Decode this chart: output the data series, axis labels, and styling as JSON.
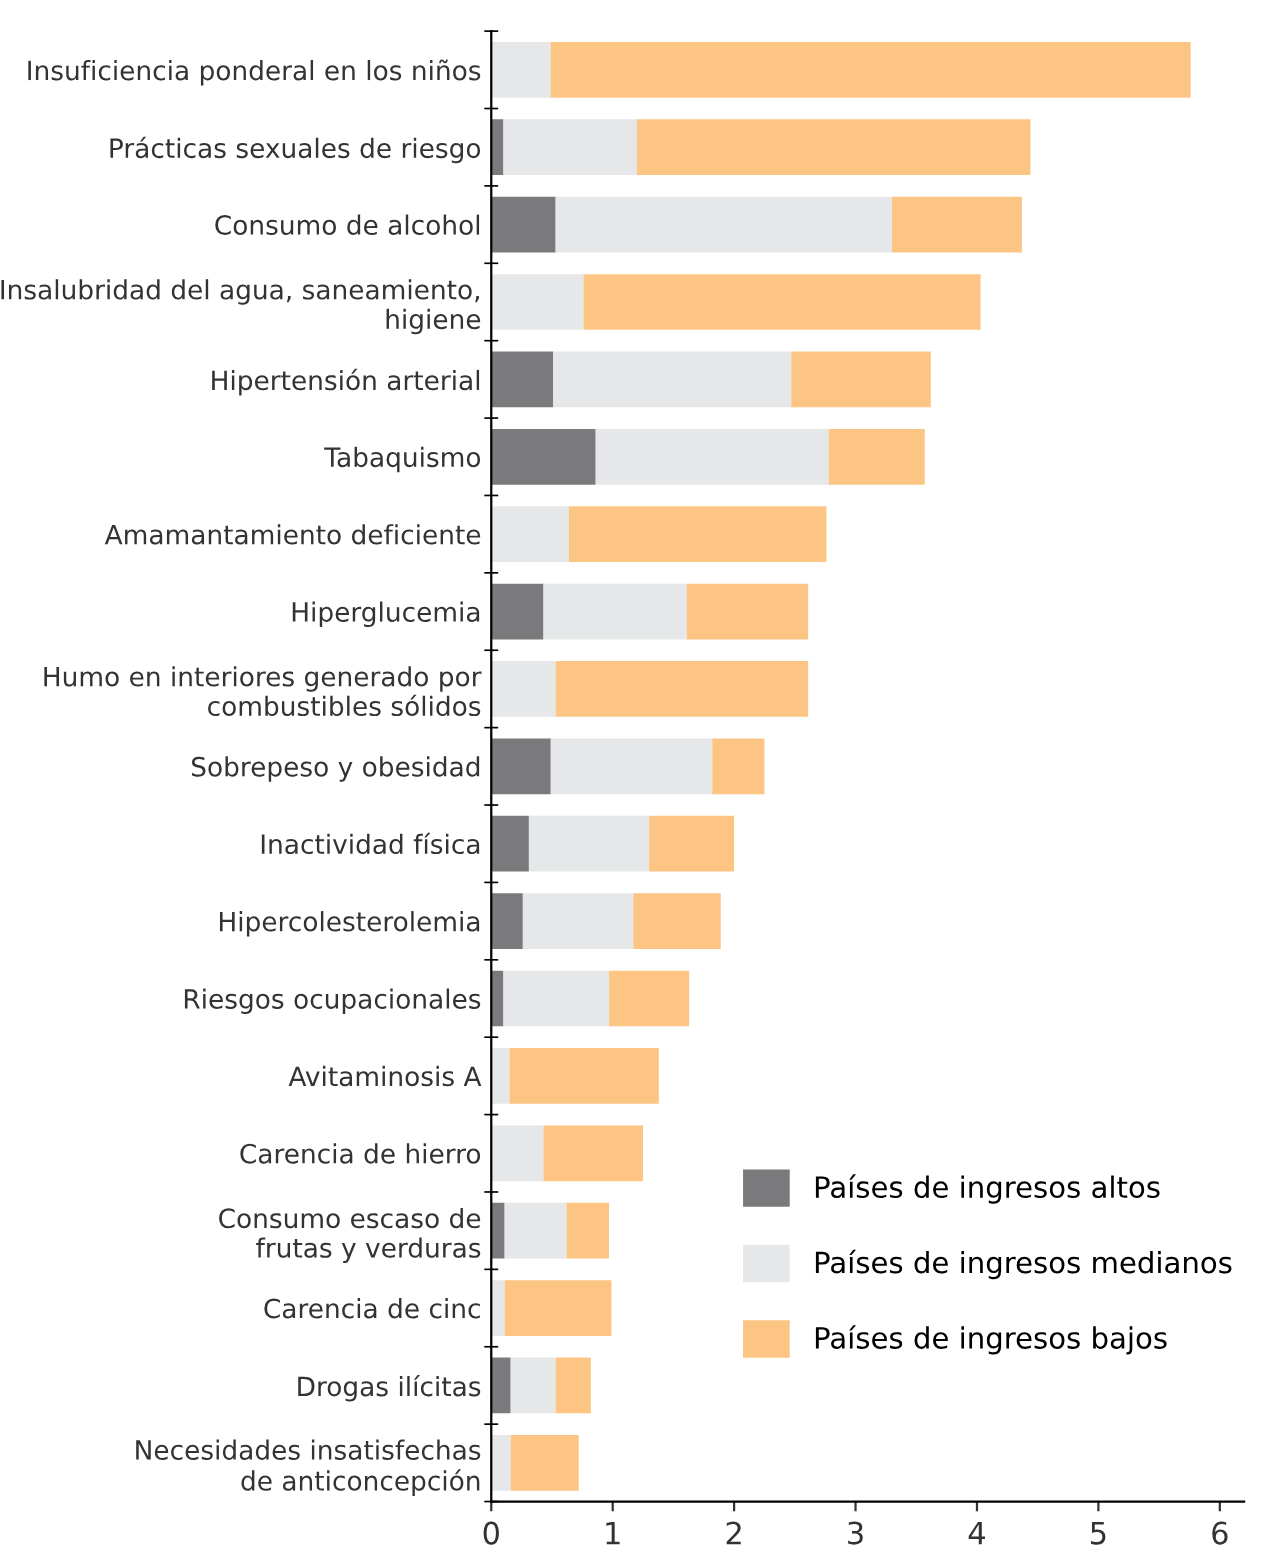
{
  "chart_data": {
    "type": "bar",
    "orientation": "horizontal",
    "stacked": true,
    "categories": [
      "Insuficiencia ponderal en los niños",
      "Prácticas sexuales de riesgo",
      "Consumo de alcohol",
      "Insalubridad del agua, saneamiento,\nhigiene",
      "Hipertensión arterial",
      "Tabaquismo",
      "Amamantamiento deficiente",
      "Hiperglucemia",
      "Humo en interiores generado por\ncombustibles sólidos",
      "Sobrepeso y obesidad",
      "Inactividad física",
      "Hipercolesterolemia",
      "Riesgos ocupacionales",
      "Avitaminosis A",
      "Carencia de hierro",
      "Consumo escaso de\nfrutas y verduras",
      "Carencia de cinc",
      "Drogas ilícitas",
      "Necesidades insatisfechas\nde anticoncepción"
    ],
    "series": [
      {
        "name": "Países de ingresos altos",
        "color": "#7a7a7c",
        "values": [
          0,
          0.1,
          0.53,
          0,
          0.51,
          0.86,
          0,
          0.43,
          0,
          0.49,
          0.31,
          0.26,
          0.1,
          0,
          0,
          0.11,
          0,
          0.16,
          0
        ]
      },
      {
        "name": "Países de ingresos medianos",
        "color": "#e6e7e8",
        "values": [
          0.49,
          1.1,
          2.77,
          0.76,
          1.96,
          1.92,
          0.64,
          1.18,
          0.53,
          1.33,
          0.99,
          0.91,
          0.87,
          0.15,
          0.43,
          0.51,
          0.11,
          0.37,
          0.16
        ]
      },
      {
        "name": "Países de ingresos bajos",
        "color": "#fdc583",
        "values": [
          5.27,
          3.24,
          1.07,
          3.27,
          1.15,
          0.79,
          2.12,
          1.0,
          2.08,
          0.43,
          0.7,
          0.72,
          0.66,
          1.23,
          0.82,
          0.35,
          0.88,
          0.29,
          0.56
        ]
      }
    ],
    "xlim": [
      0,
      6.2
    ],
    "xticks": [
      0,
      1,
      2,
      3,
      4,
      5,
      6
    ],
    "legend": "bottom right"
  }
}
